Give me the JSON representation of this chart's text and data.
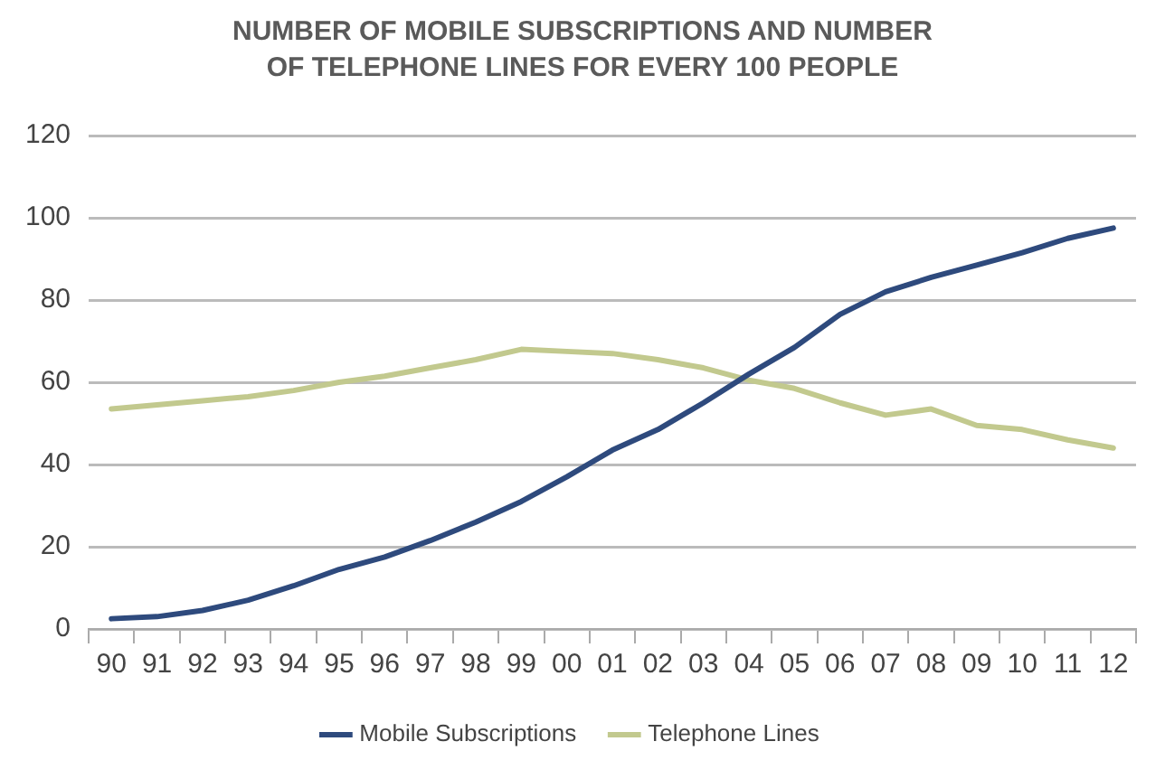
{
  "chart_data": {
    "type": "line",
    "title": "NUMBER OF MOBILE SUBSCRIPTIONS AND NUMBER OF TELEPHONE LINES FOR EVERY 100 PEOPLE",
    "categories": [
      "90",
      "91",
      "92",
      "93",
      "94",
      "95",
      "96",
      "97",
      "98",
      "99",
      "00",
      "01",
      "02",
      "03",
      "04",
      "05",
      "06",
      "07",
      "08",
      "09",
      "10",
      "11",
      "12"
    ],
    "series": [
      {
        "name": "Mobile Subscriptions",
        "color": "#2e4a7d",
        "values": [
          2.5,
          3,
          4.5,
          7,
          10.5,
          14.5,
          17.5,
          21.5,
          26,
          31,
          37,
          43.5,
          48.5,
          55,
          62,
          68.5,
          76.5,
          82,
          85.5,
          88.5,
          91.5,
          95,
          97.5
        ]
      },
      {
        "name": "Telephone Lines",
        "color": "#c2c98e",
        "values": [
          53.5,
          54.5,
          55.5,
          56.5,
          58,
          60,
          61.5,
          63.5,
          65.5,
          68,
          67.5,
          67,
          65.5,
          63.5,
          60.5,
          58.5,
          55,
          52,
          53.5,
          49.5,
          48.5,
          46,
          44
        ]
      }
    ],
    "ylim": [
      0,
      120
    ],
    "yticks": [
      0,
      20,
      40,
      60,
      80,
      100,
      120
    ],
    "grid": "y",
    "legend": "bottom",
    "marker": "none",
    "line_style": "solid"
  }
}
